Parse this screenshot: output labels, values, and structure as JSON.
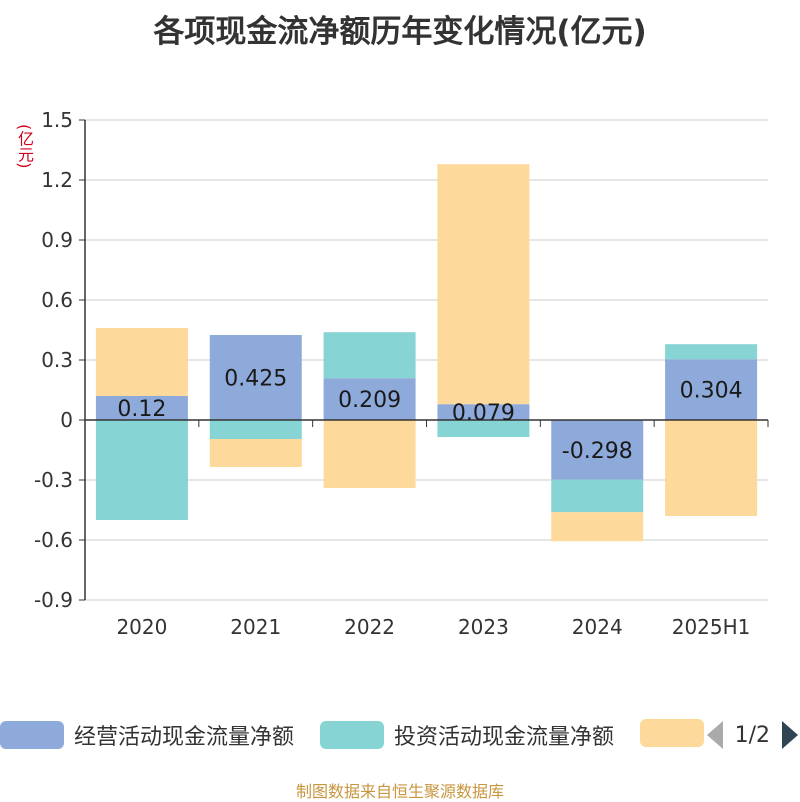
{
  "title": "各项现金流净额历年变化情况(亿元)",
  "unit_label": "(亿元)",
  "source": "制图数据来自恒生聚源数据库",
  "legend": {
    "items": [
      {
        "label": "经营活动现金流量净额",
        "color": "#8eaadb"
      },
      {
        "label": "投资活动现金流量净额",
        "color": "#86d4d4"
      },
      {
        "label": "",
        "color": "#fdd99b"
      }
    ],
    "page_text": "1/2"
  },
  "chart_data": {
    "type": "bar",
    "stacked": true,
    "categories": [
      "2020",
      "2021",
      "2022",
      "2023",
      "2024",
      "2025H1"
    ],
    "ylim": [
      -0.9,
      1.5
    ],
    "yticks": [
      "1.5",
      "1.2",
      "0.9",
      "0.6",
      "0.3",
      "0",
      "-0.3",
      "-0.6",
      "-0.9"
    ],
    "grid": true,
    "series": [
      {
        "name": "经营活动现金流量净额",
        "color": "#8eaadb",
        "values": [
          0.12,
          0.425,
          0.209,
          0.079,
          -0.298,
          0.304
        ],
        "labels": [
          "0.12",
          "0.425",
          "0.209",
          "0.079",
          "-0.298",
          "0.304"
        ]
      },
      {
        "name": "投资活动现金流量净额",
        "color": "#86d4d4",
        "values": [
          -0.5,
          -0.095,
          0.23,
          -0.085,
          -0.163,
          0.075
        ]
      },
      {
        "color": "#fdd99b",
        "values": [
          0.34,
          -0.14,
          -0.34,
          1.2,
          -0.145,
          -0.48
        ]
      }
    ]
  }
}
